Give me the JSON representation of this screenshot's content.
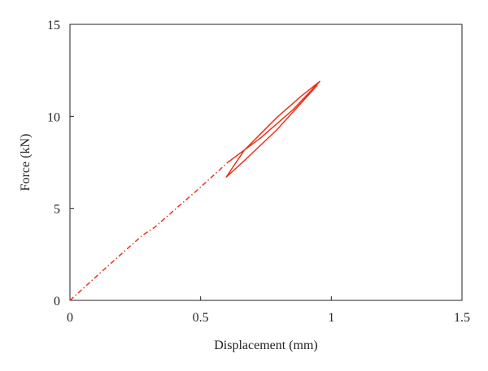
{
  "chart_data": {
    "type": "line",
    "xlabel": "Displacement (mm)",
    "ylabel": "Force (kN)",
    "xlim": [
      0,
      1.5
    ],
    "ylim": [
      0,
      15
    ],
    "xticks": [
      0,
      0.5,
      1,
      1.5
    ],
    "yticks": [
      0,
      5,
      10,
      15
    ],
    "grid": false,
    "series": [
      {
        "color": "#e8341c",
        "linestyle": "dashdot",
        "x": [
          0,
          0.137,
          0.2,
          0.277,
          0.324,
          0.402,
          0.495,
          0.604
        ],
        "values": [
          0,
          1.76,
          2.56,
          3.53,
          3.97,
          4.94,
          6.09,
          7.5
        ]
      },
      {
        "color": "#e8341c",
        "linestyle": "solid",
        "x": [
          0.604,
          0.729,
          0.854,
          0.956,
          0.885,
          0.791,
          0.667,
          0.598,
          0.667,
          0.791,
          0.947
        ],
        "values": [
          7.5,
          8.82,
          10.37,
          11.9,
          11.1,
          9.93,
          8.16,
          6.7,
          7.59,
          9.26,
          11.7
        ]
      }
    ]
  }
}
